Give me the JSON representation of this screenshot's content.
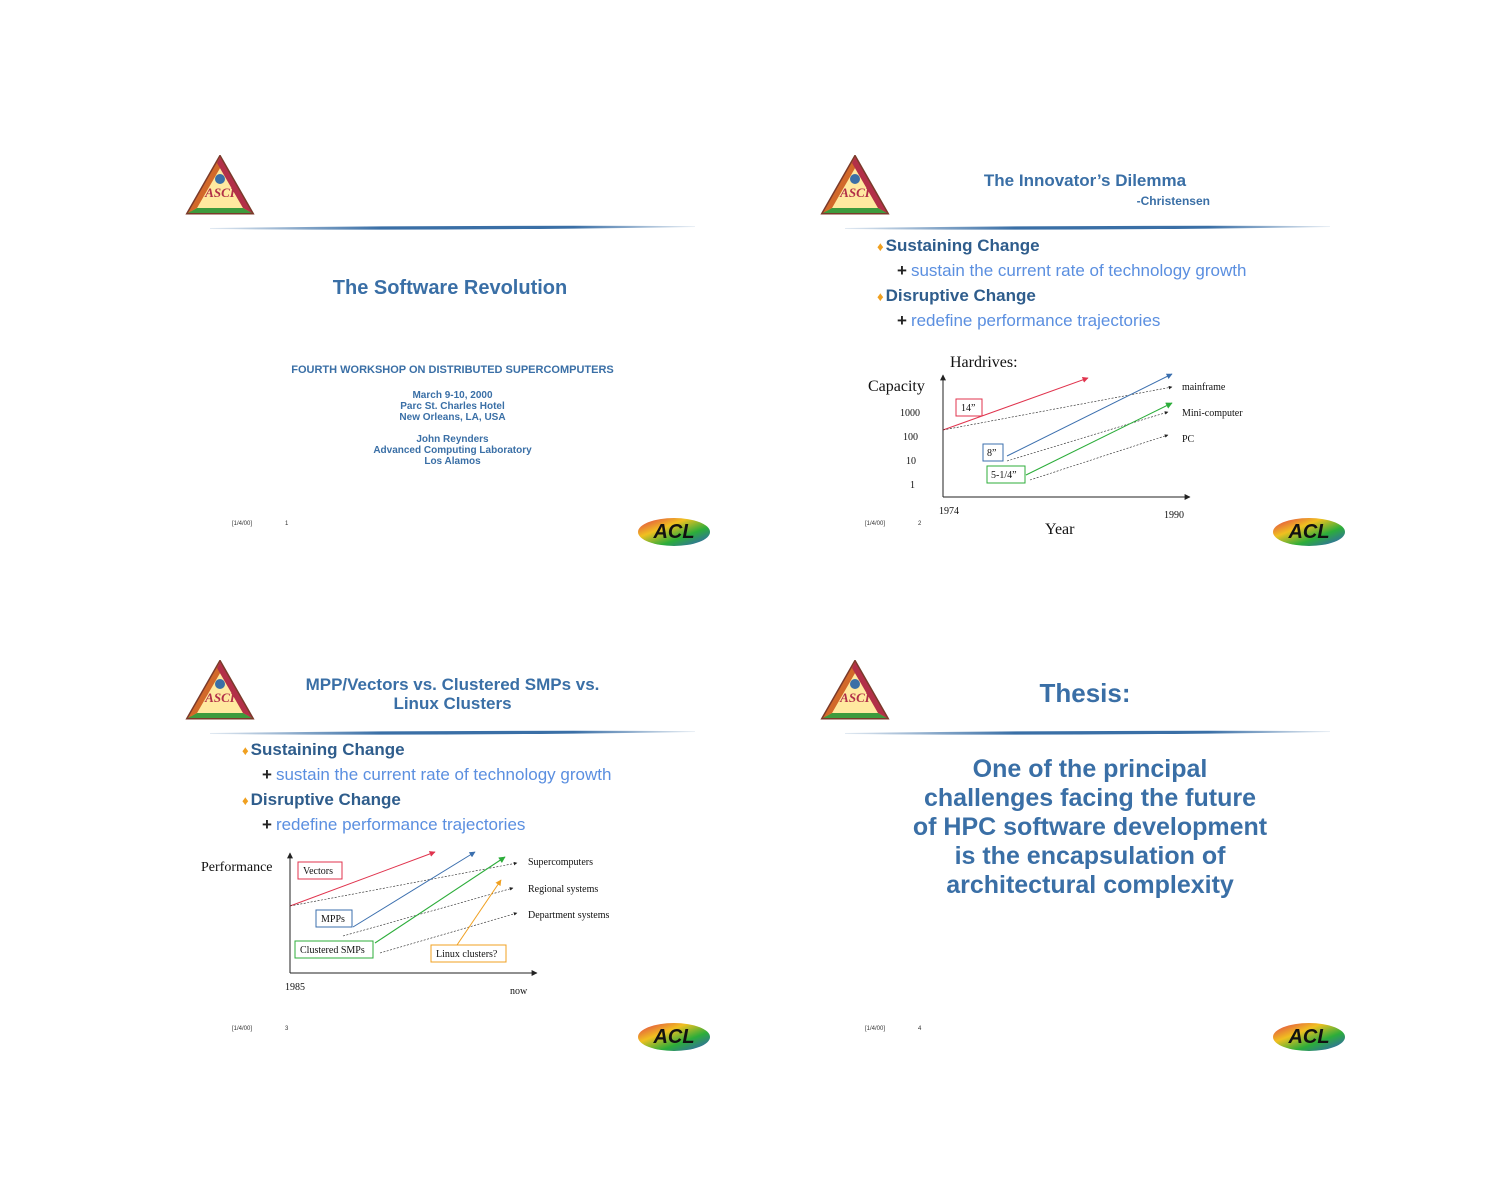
{
  "slides": [
    {
      "footer_date": "[1/4/00]",
      "footer_num": "1",
      "title": "The Software Revolution",
      "workshop": "FOURTH WORKSHOP ON DISTRIBUTED SUPERCOMPUTERS",
      "date_line": "March 9-10, 2000",
      "venue_line": "Parc St. Charles Hotel",
      "city_line": "New Orleans, LA, USA",
      "author": "John Reynders",
      "lab": "Advanced Computing Laboratory",
      "location": "Los Alamos"
    },
    {
      "footer_date": "[1/4/00]",
      "footer_num": "2",
      "title": "The Innovator’s Dilemma",
      "attribution": "-Christensen",
      "bullets": {
        "b1": "Sustaining Change",
        "b1_sub": "sustain the current rate of technology growth",
        "b2": "Disruptive Change",
        "b2_sub": "redefine performance trajectories"
      },
      "chart_data": {
        "type": "line",
        "title": "Hardrives:",
        "xlabel": "Year",
        "ylabel": "Capacity",
        "x_ticks": [
          "1974",
          "1990"
        ],
        "y_ticks": [
          "1000",
          "100",
          "10",
          "1"
        ],
        "boxes": [
          "14”",
          "8”",
          "5-1/4”"
        ],
        "series": [
          {
            "name": "mainframe"
          },
          {
            "name": "Mini-computer"
          },
          {
            "name": "PC"
          }
        ],
        "colors": {
          "red": "#e0334d",
          "blue": "#3b6fae",
          "green": "#2cad3a",
          "black": "#222222"
        }
      }
    },
    {
      "footer_date": "[1/4/00]",
      "footer_num": "3",
      "title_line1": "MPP/Vectors vs. Clustered SMPs vs.",
      "title_line2": "Linux Clusters",
      "bullets": {
        "b1": "Sustaining Change",
        "b1_sub": "sustain the current rate of technology growth",
        "b2": "Disruptive Change",
        "b2_sub": "redefine performance trajectories"
      },
      "chart_data": {
        "type": "line",
        "ylabel": "Performance",
        "x_ticks": [
          "1985",
          "now"
        ],
        "boxes": [
          "Vectors",
          "MPPs",
          "Clustered SMPs",
          "Linux clusters?"
        ],
        "series": [
          {
            "name": "Supercomputers"
          },
          {
            "name": "Regional systems"
          },
          {
            "name": "Department systems"
          }
        ],
        "colors": {
          "red": "#e0334d",
          "blue": "#3b6fae",
          "green": "#2cad3a",
          "orange": "#f0a020",
          "black": "#222222"
        }
      }
    },
    {
      "footer_date": "[1/4/00]",
      "footer_num": "4",
      "title": "Thesis:",
      "body_lines": [
        "One of the principal",
        "challenges facing the future",
        "of HPC software development",
        "is the encapsulation of",
        "architectural complexity"
      ]
    }
  ]
}
